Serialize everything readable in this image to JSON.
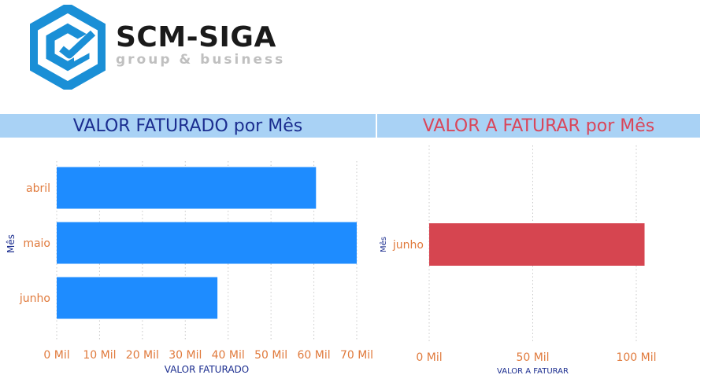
{
  "header": {
    "brand_name": "SCM-SIGA",
    "brand_tagline": "group & business"
  },
  "colors": {
    "faturado_bar": "#1e8cff",
    "a_faturar_bar": "#d64550",
    "title_bar_bg": "#a9d2f5",
    "title_left": "#1b2d8f",
    "title_right": "#d9465a",
    "tick_labels": "#e07a3c",
    "axis_title": "#1b2d8f",
    "logo": "#1a8fd6"
  },
  "chart_data": [
    {
      "type": "bar",
      "orientation": "horizontal",
      "title": "VALOR FATURADO por Mês",
      "categories": [
        "abril",
        "maio",
        "junho"
      ],
      "values": [
        60500,
        70000,
        37500
      ],
      "xlabel": "VALOR FATURADO",
      "ylabel": "Mês",
      "xlim": [
        0,
        70000
      ],
      "x_ticks": [
        0,
        10000,
        20000,
        30000,
        40000,
        50000,
        60000,
        70000
      ],
      "x_tick_labels": [
        "0 Mil",
        "10 Mil",
        "20 Mil",
        "30 Mil",
        "40 Mil",
        "50 Mil",
        "60 Mil",
        "70 Mil"
      ],
      "grid": "vertical-dotted",
      "legend": "none"
    },
    {
      "type": "bar",
      "orientation": "horizontal",
      "title": "VALOR A FATURAR por Mês",
      "categories": [
        "junho"
      ],
      "values": [
        104000
      ],
      "xlabel": "VALOR A FATURAR",
      "ylabel": "Mês",
      "xlim": [
        0,
        100000
      ],
      "x_ticks": [
        0,
        50000,
        100000
      ],
      "x_tick_labels": [
        "0 Mil",
        "50 Mil",
        "100 Mil"
      ],
      "grid": "vertical-dotted",
      "legend": "none"
    }
  ]
}
